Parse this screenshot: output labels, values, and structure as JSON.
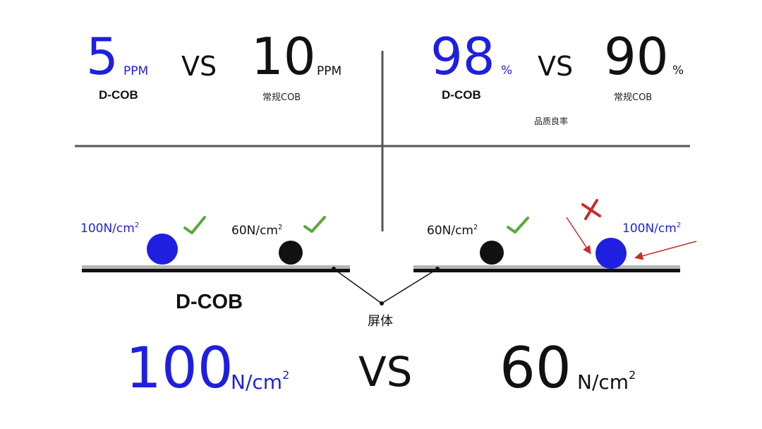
{
  "top_left": {
    "value_dcob": "5",
    "unit_dcob": "PPM",
    "label_dcob": "D-COB",
    "vs": "VS",
    "value_regular": "10",
    "unit_regular": "PPM",
    "label_regular": "常规COB"
  },
  "top_right": {
    "value_dcob": "98",
    "unit_dcob": "%",
    "label_dcob": "D-COB",
    "vs": "VS",
    "value_regular": "90",
    "unit_regular": "%",
    "label_regular": "常规COB",
    "caption": "品质良率"
  },
  "diagram": {
    "left_force_1_base": "100N/cm",
    "left_force_1_sup": "2",
    "left_force_2_base": "60N/cm",
    "left_force_2_sup": "2",
    "right_force_1_base": "60N/cm",
    "right_force_1_sup": "2",
    "right_force_2_base": "100N/cm",
    "right_force_2_sup": "2",
    "left_label": "D-COB",
    "screen_label": "屏体"
  },
  "bottom": {
    "value_dcob": "100",
    "unit_dcob_base": "N/cm",
    "unit_dcob_sup": "2",
    "vs": "VS",
    "value_regular": "60",
    "unit_regular_base": "N/cm",
    "unit_regular_sup": "2"
  },
  "colors": {
    "accent_blue": "#1f1fe0",
    "check_green": "#5aaa3c",
    "cross_red": "#cc2a2a",
    "divider_gray": "#555555"
  },
  "icons": {
    "check": "check-mark-icon",
    "cross": "cross-mark-icon",
    "arrow": "arrow-icon"
  }
}
